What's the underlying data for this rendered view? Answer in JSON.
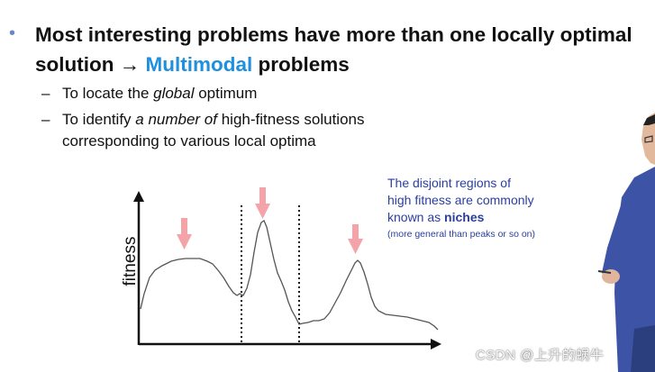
{
  "slide": {
    "main_bullet": {
      "line1": "Most interesting problems have more than one locally optimal",
      "line2_prefix": "solution ",
      "arrow": "→",
      "highlight": "Multimodal",
      "line2_suffix": " problems"
    },
    "sub_bullets": [
      {
        "dash": "–",
        "before": "To locate the ",
        "em": "global",
        "after": " optimum"
      },
      {
        "dash": "–",
        "before": "To identify ",
        "em": "a number of",
        "after": " high-fitness solutions corresponding to various local optima"
      }
    ],
    "note": {
      "line1": "The disjoint regions of",
      "line2": "high fitness are commonly",
      "line3_prefix": "known as ",
      "line3_bold": "niches",
      "small": "(more general than peaks or so on)"
    },
    "figure": {
      "ylabel": "fitness"
    },
    "watermark": "CSDN @上升的蜗牛"
  },
  "colors": {
    "accent": "#1e90e0",
    "note_text": "#2a3fa0",
    "peak_arrow": "#f4a3a8",
    "curve": "#555555"
  }
}
